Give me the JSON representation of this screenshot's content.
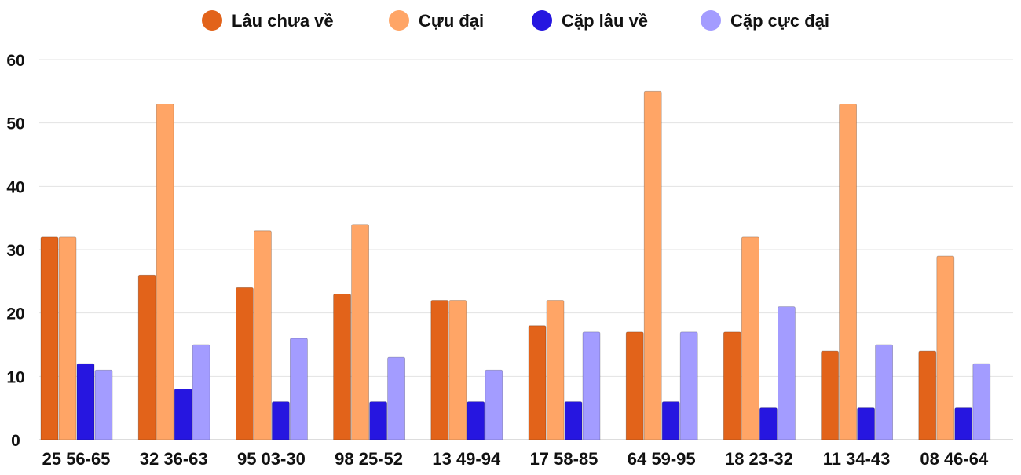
{
  "chart_data": {
    "type": "bar",
    "title": "",
    "xlabel": "",
    "ylabel": "",
    "ylim": [
      0,
      60
    ],
    "yticks": [
      0,
      10,
      20,
      30,
      40,
      50,
      60
    ],
    "grid": true,
    "legend_position": "top",
    "categories": [
      "25 56-65",
      "32 36-63",
      "95 03-30",
      "98 25-52",
      "13 49-94",
      "17 58-85",
      "64 59-95",
      "18 23-32",
      "11 34-43",
      "08 46-64"
    ],
    "series": [
      {
        "name": "Lâu chưa về",
        "color": "#e2631a",
        "values": [
          32,
          26,
          24,
          23,
          22,
          18,
          17,
          17,
          14,
          14
        ]
      },
      {
        "name": "Cựu đại",
        "color": "#ffa566",
        "values": [
          32,
          53,
          33,
          34,
          22,
          22,
          55,
          32,
          53,
          29
        ]
      },
      {
        "name": "Cặp lâu về",
        "color": "#2616e0",
        "values": [
          12,
          8,
          6,
          6,
          6,
          6,
          6,
          5,
          5,
          5
        ]
      },
      {
        "name": "Cặp cực đại",
        "color": "#a39cff",
        "values": [
          11,
          15,
          16,
          13,
          11,
          17,
          17,
          21,
          15,
          12
        ]
      }
    ]
  }
}
